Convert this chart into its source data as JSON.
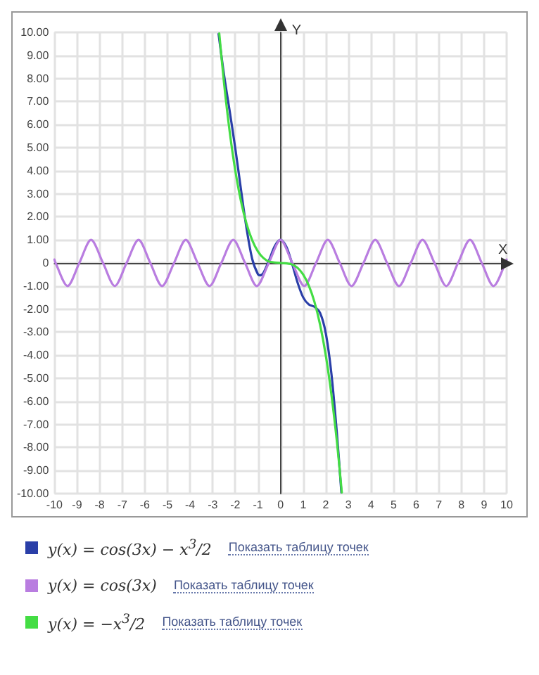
{
  "chart_data": {
    "type": "line",
    "xlabel": "X",
    "ylabel": "Y",
    "xlim": [
      -10,
      10
    ],
    "ylim": [
      -10,
      10
    ],
    "xticks": [
      -10,
      -9,
      -8,
      -7,
      -6,
      -5,
      -4,
      -3,
      -2,
      -1,
      0,
      1,
      2,
      3,
      4,
      5,
      6,
      7,
      8,
      9,
      10
    ],
    "yticks": [
      {
        "value": -10,
        "label": "-10.00"
      },
      {
        "value": -9,
        "label": "-9.00"
      },
      {
        "value": -8,
        "label": "-8.00"
      },
      {
        "value": -7,
        "label": "-7.00"
      },
      {
        "value": -6,
        "label": "-6.00"
      },
      {
        "value": -5,
        "label": "-5.00"
      },
      {
        "value": -4,
        "label": "-4.00"
      },
      {
        "value": -3,
        "label": "-3.00"
      },
      {
        "value": -2,
        "label": "-2.00"
      },
      {
        "value": -1,
        "label": "-1.00"
      },
      0,
      {
        "value": 1,
        "label": "1.00"
      },
      {
        "value": 2,
        "label": "2.00"
      },
      {
        "value": 3,
        "label": "3.00"
      },
      {
        "value": 4,
        "label": "4.00"
      },
      {
        "value": 5,
        "label": "5.00"
      },
      {
        "value": 6,
        "label": "6.00"
      },
      {
        "value": 7,
        "label": "7.00"
      },
      {
        "value": 8,
        "label": "8.00"
      },
      {
        "value": 9,
        "label": "9.00"
      },
      {
        "value": 10,
        "label": "10.00"
      }
    ],
    "grid": true,
    "legend": "bottom",
    "marker": "none",
    "line_style": "solid",
    "annotations": [
      "Показать таблицу точек",
      "Показать таблицу точек",
      "Показать таблицу точек"
    ],
    "series": [
      {
        "name": "y(x) = cos(3x) − x$^{3}$/2",
        "color": "#2a3fa8",
        "x": [
          -2.74,
          -2.5,
          -2.25,
          -2,
          -1.75,
          -1.5,
          -1.25,
          -1,
          -0.9,
          -0.75,
          -0.5,
          -0.25,
          0,
          0.25,
          0.5,
          0.75,
          1,
          1.25,
          1.5,
          1.75,
          2,
          2.25,
          2.5,
          2.69
        ],
        "values": [
          9.93,
          8.16,
          6.59,
          4.96,
          3.19,
          1.48,
          0.16,
          -0.49,
          -0.54,
          -0.42,
          0.13,
          0.74,
          1,
          0.72,
          0.01,
          -0.84,
          -1.49,
          -1.8,
          -1.9,
          -2.17,
          -3.04,
          -4.8,
          -7.47,
          -9.95
        ]
      },
      {
        "name": "y(x) = cos(3x)",
        "color": "#b97de0",
        "x": [
          -10,
          -9.95,
          -9.42,
          -8.9,
          -8.38,
          -7.85,
          -7.33,
          -6.81,
          -6.28,
          -5.76,
          -5.24,
          -4.71,
          -4.19,
          -3.67,
          -3.14,
          -2.62,
          -2.09,
          -1.57,
          -1.05,
          -0.52,
          0,
          0.52,
          1.05,
          1.57,
          2.09,
          2.62,
          3.14,
          3.67,
          4.19,
          4.71,
          5.24,
          5.76,
          6.28,
          6.81,
          7.33,
          7.85,
          8.38,
          8.9,
          9.42,
          9.95,
          10
        ],
        "values": [
          0.15,
          0,
          -1,
          0,
          1,
          0,
          -1,
          0,
          1,
          0,
          -1,
          0,
          1,
          0,
          -1,
          0,
          1,
          0,
          -1,
          0,
          1,
          0,
          -1,
          0,
          1,
          0,
          -1,
          0,
          1,
          0,
          -1,
          0,
          1,
          0,
          -1,
          0,
          1,
          0,
          -1,
          0,
          0.15
        ]
      },
      {
        "name": "y(x) = −x$^{3}$/2",
        "color": "#44dd44",
        "x": [
          -2.71,
          -2.5,
          -2.25,
          -2,
          -1.75,
          -1.5,
          -1.25,
          -1,
          -0.75,
          -0.5,
          0,
          0.5,
          0.75,
          1,
          1.25,
          1.5,
          1.75,
          2,
          2.25,
          2.5,
          2.71
        ],
        "values": [
          9.95,
          7.81,
          5.7,
          4,
          2.68,
          1.69,
          0.98,
          0.5,
          0.21,
          0.06,
          0,
          -0.06,
          -0.21,
          -0.5,
          -0.98,
          -1.69,
          -2.68,
          -4,
          -5.7,
          -7.81,
          -9.95
        ]
      }
    ]
  }
}
